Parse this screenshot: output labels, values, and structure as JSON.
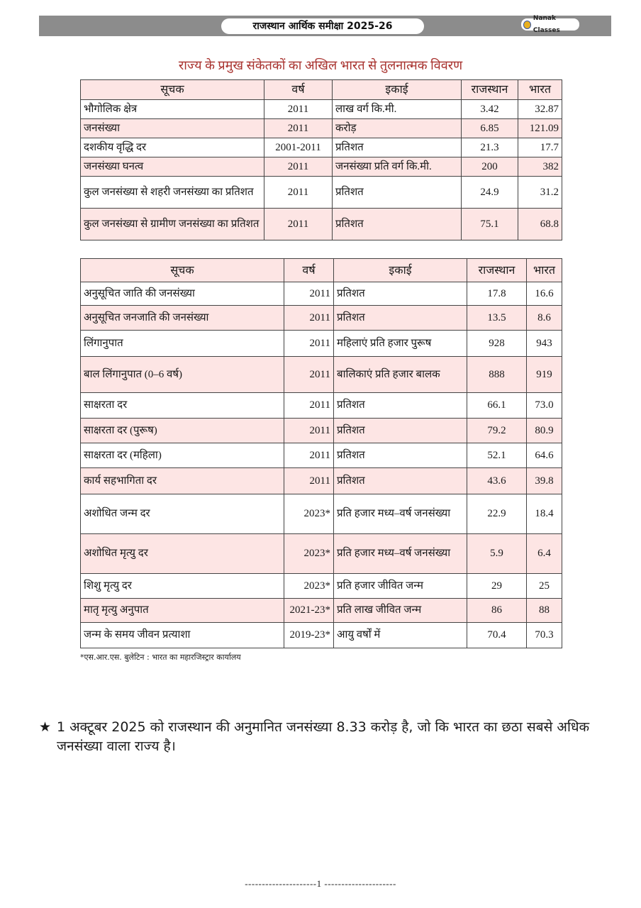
{
  "header": {
    "title": "राजस्थान आर्थिक समीक्षा 2025-26",
    "logo_text": "Nanak Classes"
  },
  "subtitle": "राज्य के प्रमुख संकेतकों का अखिल भारत से तुलनात्मक विवरण",
  "columns": [
    "सूचक",
    "वर्ष",
    "इकाई",
    "राजस्थान",
    "भारत"
  ],
  "table1": [
    [
      "भौगोलिक क्षेत्र",
      "2011",
      "लाख वर्ग कि.मी.",
      "3.42",
      "32.87"
    ],
    [
      "जनसंख्या",
      "2011",
      "करोड़",
      "6.85",
      "121.09"
    ],
    [
      "दशकीय वृद्धि दर",
      "2001-2011",
      "प्रतिशत",
      "21.3",
      "17.7"
    ],
    [
      "जनसंख्या घनत्व",
      "2011",
      "जनसंख्या प्रति वर्ग कि.मी.",
      "200",
      "382"
    ],
    [
      "कुल जनसंख्या से शहरी जनसंख्या का प्रतिशत",
      "2011",
      "प्रतिशत",
      "24.9",
      "31.2"
    ],
    [
      "कुल जनसंख्या से ग्रामीण जनसंख्या का प्रतिशत",
      "2011",
      "प्रतिशत",
      "75.1",
      "68.8"
    ]
  ],
  "table2": [
    [
      "अनुसूचित जाति की जनसंख्या",
      "2011",
      "प्रतिशत",
      "17.8",
      "16.6"
    ],
    [
      "अनुसूचित जनजाति की जनसंख्या",
      "2011",
      "प्रतिशत",
      "13.5",
      "8.6"
    ],
    [
      "लिंगानुपात",
      "2011",
      "महिलाएं प्रति हजार पुरूष",
      "928",
      "943"
    ],
    [
      "बाल लिंगानुपात (0–6 वर्ष)",
      "2011",
      "बालिकाएं प्रति हजार बालक",
      "888",
      "919"
    ],
    [
      "साक्षरता दर",
      "2011",
      "प्रतिशत",
      "66.1",
      "73.0"
    ],
    [
      "साक्षरता दर (पुरूष)",
      "2011",
      "प्रतिशत",
      "79.2",
      "80.9"
    ],
    [
      "साक्षरता दर (महिला)",
      "2011",
      "प्रतिशत",
      "52.1",
      "64.6"
    ],
    [
      "कार्य सहभागिता दर",
      "2011",
      "प्रतिशत",
      "43.6",
      "39.8"
    ],
    [
      "अशोधित जन्म दर",
      "2023*",
      "प्रति हजार मध्य–वर्ष जनसंख्या",
      "22.9",
      "18.4"
    ],
    [
      "अशोधित मृत्यु दर",
      "2023*",
      "प्रति हजार मध्य–वर्ष जनसंख्या",
      "5.9",
      "6.4"
    ],
    [
      "शिशु मृत्यु दर",
      "2023*",
      "प्रति हजार जीवित जन्म",
      "29",
      "25"
    ],
    [
      "मातृ मृत्यु अनुपात",
      "2021-23*",
      "प्रति लाख जीवित जन्म",
      "86",
      "88"
    ],
    [
      "जन्म के समय जीवन प्रत्याशा",
      "2019-23*",
      "आयु वर्षों में",
      "70.4",
      "70.3"
    ]
  ],
  "footnote": "*एस.आर.एस. बुलेटिन : भारत का महारजिस्ट्रार कार्यालय",
  "note": {
    "icon": "star-icon",
    "text": "1 अक्टूबर 2025 को राजस्थान की अनुमानित जनसंख्या 8.33 करोड़ है, जो कि भारत का छठा सबसे अधिक जनसंख्या वाला राज्य है।"
  },
  "page_number": "---------------------1 ---------------------",
  "colors": {
    "title_red": "#a8322e",
    "row_pink": "#fde5e4",
    "header_gray": "#8c8c8c"
  }
}
